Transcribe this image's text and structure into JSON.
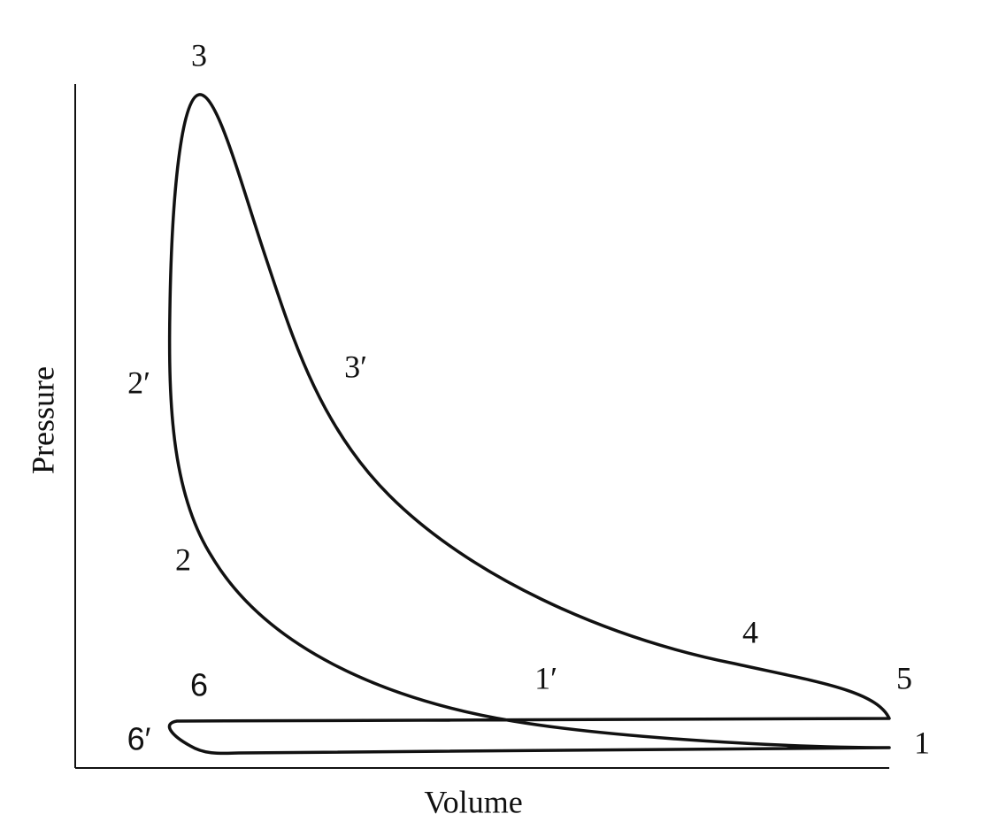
{
  "axes": {
    "x_label": "Volume",
    "y_label": "Pressure"
  },
  "points": [
    {
      "label": "3"
    },
    {
      "label": "2′"
    },
    {
      "label": "3′"
    },
    {
      "label": "2"
    },
    {
      "label": "6"
    },
    {
      "label": "1′"
    },
    {
      "label": "4"
    },
    {
      "label": "5"
    },
    {
      "label": "6′"
    },
    {
      "label": "1"
    }
  ]
}
